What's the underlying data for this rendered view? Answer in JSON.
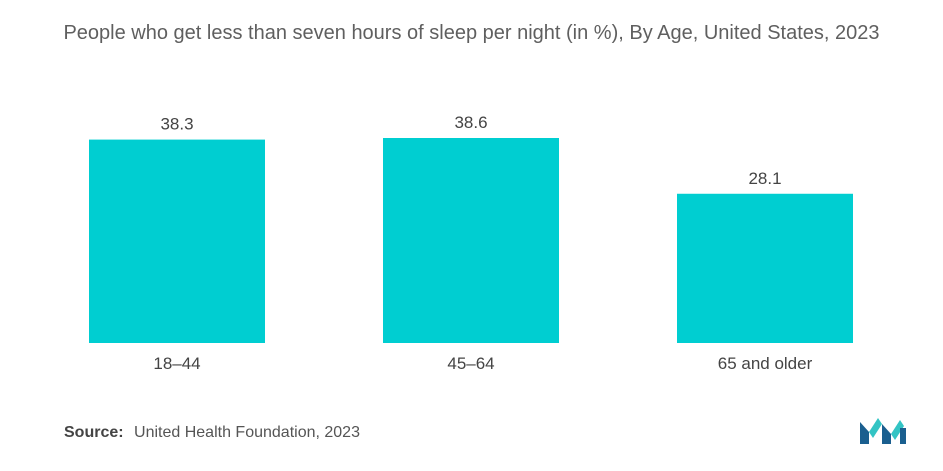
{
  "chart_data": {
    "type": "bar",
    "title": "People who get less than seven hours of sleep per night (in %), By Age, United States, 2023",
    "categories": [
      "18–44",
      "45–64",
      "65 and older"
    ],
    "values": [
      38.3,
      38.6,
      28.1
    ],
    "value_labels": [
      "38.3",
      "38.6",
      "28.1"
    ],
    "xlabel": "",
    "ylabel": "",
    "ylim": [
      0,
      38.6
    ],
    "grid": false,
    "legend": "none",
    "bar_color": "#00CED1"
  },
  "source": {
    "label": "Source:",
    "text": "United Health Foundation, 2023"
  },
  "logo": {
    "icon": "mordor-intelligence-logo-icon",
    "color_dark": "#1a5f8f",
    "color_light": "#33c4c4"
  }
}
